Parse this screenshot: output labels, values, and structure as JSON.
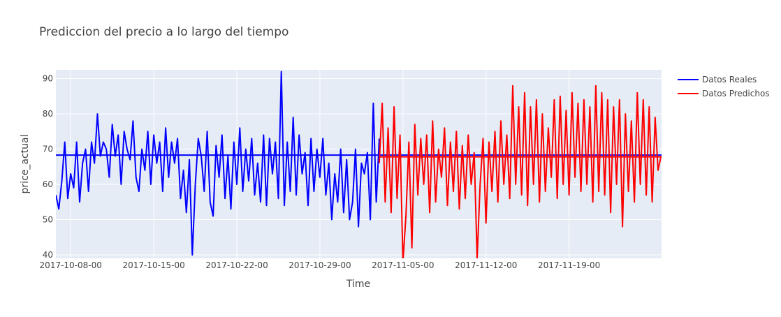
{
  "chart_data": {
    "type": "line",
    "title": "Prediccion del precio a lo largo del tiempo",
    "xlabel": "Time",
    "ylabel": "price_actual",
    "x_range": [
      "2017-10-06T18:00",
      "2017-11-26T19:00"
    ],
    "ylim": [
      39,
      92.5
    ],
    "x_ticks": [
      "2017-10-08-00",
      "2017-10-15-00",
      "2017-10-22-00",
      "2017-10-29-00",
      "2017-11-05-00",
      "2017-11-12-00",
      "2017-11-19-00"
    ],
    "x_tick_dates": [
      "2017-10-08T00:00",
      "2017-10-15T00:00",
      "2017-10-22T00:00",
      "2017-10-29T00:00",
      "2017-11-05T00:00",
      "2017-11-12T00:00",
      "2017-11-19T00:00"
    ],
    "y_ticks": [
      40,
      50,
      60,
      70,
      80,
      90
    ],
    "grid": true,
    "legend_position": "top-right",
    "colors": {
      "plot_bg": "#e5ecf6",
      "grid": "#ffffff",
      "text": "#444444"
    },
    "series": [
      {
        "name": "Datos Reales",
        "color": "#0000ff",
        "mean_line": 68.3,
        "x": [
          "2017-10-06T18:00",
          "2017-10-07T00:00",
          "2017-10-07T06:00",
          "2017-10-07T12:00",
          "2017-10-07T18:00",
          "2017-10-08T00:00",
          "2017-10-08T06:00",
          "2017-10-08T12:00",
          "2017-10-08T18:00",
          "2017-10-09T00:00",
          "2017-10-09T06:00",
          "2017-10-09T12:00",
          "2017-10-09T18:00",
          "2017-10-10T00:00",
          "2017-10-10T06:00",
          "2017-10-10T12:00",
          "2017-10-10T18:00",
          "2017-10-11T00:00",
          "2017-10-11T06:00",
          "2017-10-11T12:00",
          "2017-10-11T18:00",
          "2017-10-12T00:00",
          "2017-10-12T06:00",
          "2017-10-12T12:00",
          "2017-10-12T18:00",
          "2017-10-13T00:00",
          "2017-10-13T06:00",
          "2017-10-13T12:00",
          "2017-10-13T18:00",
          "2017-10-14T00:00",
          "2017-10-14T06:00",
          "2017-10-14T12:00",
          "2017-10-14T18:00",
          "2017-10-15T00:00",
          "2017-10-15T06:00",
          "2017-10-15T12:00",
          "2017-10-15T18:00",
          "2017-10-16T00:00",
          "2017-10-16T06:00",
          "2017-10-16T12:00",
          "2017-10-16T18:00",
          "2017-10-17T00:00",
          "2017-10-17T06:00",
          "2017-10-17T12:00",
          "2017-10-17T18:00",
          "2017-10-18T00:00",
          "2017-10-18T06:00",
          "2017-10-18T12:00",
          "2017-10-18T18:00",
          "2017-10-19T00:00",
          "2017-10-19T06:00",
          "2017-10-19T12:00",
          "2017-10-19T18:00",
          "2017-10-20T00:00",
          "2017-10-20T06:00",
          "2017-10-20T12:00",
          "2017-10-20T18:00",
          "2017-10-21T00:00",
          "2017-10-21T06:00",
          "2017-10-21T12:00",
          "2017-10-21T18:00",
          "2017-10-22T00:00",
          "2017-10-22T06:00",
          "2017-10-22T12:00",
          "2017-10-22T18:00",
          "2017-10-23T00:00",
          "2017-10-23T06:00",
          "2017-10-23T12:00",
          "2017-10-23T18:00",
          "2017-10-24T00:00",
          "2017-10-24T06:00",
          "2017-10-24T12:00",
          "2017-10-24T18:00",
          "2017-10-25T00:00",
          "2017-10-25T06:00",
          "2017-10-25T12:00",
          "2017-10-25T18:00",
          "2017-10-26T00:00",
          "2017-10-26T06:00",
          "2017-10-26T12:00",
          "2017-10-26T18:00",
          "2017-10-27T00:00",
          "2017-10-27T06:00",
          "2017-10-27T12:00",
          "2017-10-27T18:00",
          "2017-10-28T00:00",
          "2017-10-28T06:00",
          "2017-10-28T12:00",
          "2017-10-28T18:00",
          "2017-10-29T00:00",
          "2017-10-29T06:00",
          "2017-10-29T12:00",
          "2017-10-29T18:00",
          "2017-10-30T00:00",
          "2017-10-30T06:00",
          "2017-10-30T12:00",
          "2017-10-30T18:00",
          "2017-10-31T00:00",
          "2017-10-31T06:00",
          "2017-10-31T12:00",
          "2017-10-31T18:00",
          "2017-11-01T00:00",
          "2017-11-01T06:00",
          "2017-11-01T12:00",
          "2017-11-01T18:00",
          "2017-11-02T00:00",
          "2017-11-02T06:00",
          "2017-11-02T12:00",
          "2017-11-02T18:00",
          "2017-11-03T00:00"
        ],
        "y": [
          57,
          53,
          61,
          72,
          56,
          63,
          59,
          72,
          55,
          66,
          70,
          58,
          72,
          66,
          80,
          68,
          72,
          70,
          62,
          77,
          68,
          74,
          60,
          75,
          70,
          67,
          78,
          62,
          58,
          70,
          64,
          75,
          60,
          74,
          66,
          72,
          58,
          76,
          62,
          72,
          66,
          73,
          56,
          64,
          52,
          67,
          40,
          60,
          73,
          68,
          58,
          75,
          55,
          51,
          71,
          62,
          74,
          56,
          68,
          53,
          72,
          60,
          76,
          58,
          70,
          61,
          73,
          57,
          66,
          55,
          74,
          54,
          73,
          63,
          72,
          56,
          92,
          54,
          72,
          58,
          79,
          57,
          74,
          63,
          69,
          54,
          73,
          58,
          70,
          62,
          73,
          57,
          66,
          50,
          63,
          55,
          70,
          52,
          67,
          50,
          55,
          70,
          48,
          66,
          63,
          69,
          50,
          83,
          55,
          73
        ]
      },
      {
        "name": "Datos Predichos",
        "color": "#ff0000",
        "mean_line": 67.8,
        "x": [
          "2017-11-03T00:00",
          "2017-11-03T06:00",
          "2017-11-03T12:00",
          "2017-11-03T18:00",
          "2017-11-04T00:00",
          "2017-11-04T06:00",
          "2017-11-04T12:00",
          "2017-11-04T18:00",
          "2017-11-05T00:00",
          "2017-11-05T06:00",
          "2017-11-05T12:00",
          "2017-11-05T18:00",
          "2017-11-06T00:00",
          "2017-11-06T06:00",
          "2017-11-06T12:00",
          "2017-11-06T18:00",
          "2017-11-07T00:00",
          "2017-11-07T06:00",
          "2017-11-07T12:00",
          "2017-11-07T18:00",
          "2017-11-08T00:00",
          "2017-11-08T06:00",
          "2017-11-08T12:00",
          "2017-11-08T18:00",
          "2017-11-09T00:00",
          "2017-11-09T06:00",
          "2017-11-09T12:00",
          "2017-11-09T18:00",
          "2017-11-10T00:00",
          "2017-11-10T06:00",
          "2017-11-10T12:00",
          "2017-11-10T18:00",
          "2017-11-11T00:00",
          "2017-11-11T06:00",
          "2017-11-11T12:00",
          "2017-11-11T18:00",
          "2017-11-12T00:00",
          "2017-11-12T06:00",
          "2017-11-12T12:00",
          "2017-11-12T18:00",
          "2017-11-13T00:00",
          "2017-11-13T06:00",
          "2017-11-13T12:00",
          "2017-11-13T18:00",
          "2017-11-14T00:00",
          "2017-11-14T06:00",
          "2017-11-14T12:00",
          "2017-11-14T18:00",
          "2017-11-15T00:00",
          "2017-11-15T06:00",
          "2017-11-15T12:00",
          "2017-11-15T18:00",
          "2017-11-16T00:00",
          "2017-11-16T06:00",
          "2017-11-16T12:00",
          "2017-11-16T18:00",
          "2017-11-17T00:00",
          "2017-11-17T06:00",
          "2017-11-17T12:00",
          "2017-11-17T18:00",
          "2017-11-18T00:00",
          "2017-11-18T06:00",
          "2017-11-18T12:00",
          "2017-11-18T18:00",
          "2017-11-19T00:00",
          "2017-11-19T06:00",
          "2017-11-19T12:00",
          "2017-11-19T18:00",
          "2017-11-20T00:00",
          "2017-11-20T06:00",
          "2017-11-20T12:00",
          "2017-11-20T18:00",
          "2017-11-21T00:00",
          "2017-11-21T06:00",
          "2017-11-21T12:00",
          "2017-11-21T18:00",
          "2017-11-22T00:00",
          "2017-11-22T06:00",
          "2017-11-22T12:00",
          "2017-11-22T18:00",
          "2017-11-23T00:00",
          "2017-11-23T06:00",
          "2017-11-23T12:00",
          "2017-11-23T18:00",
          "2017-11-24T00:00",
          "2017-11-24T06:00",
          "2017-11-24T12:00",
          "2017-11-24T18:00",
          "2017-11-25T00:00",
          "2017-11-25T06:00",
          "2017-11-25T12:00",
          "2017-11-25T18:00",
          "2017-11-26T00:00",
          "2017-11-26T06:00",
          "2017-11-26T12:00",
          "2017-11-26T18:00"
        ],
        "y": [
          66,
          83,
          55,
          76,
          52,
          82,
          56,
          74,
          38,
          51,
          72,
          42,
          77,
          57,
          73,
          60,
          74,
          52,
          78,
          55,
          70,
          62,
          76,
          54,
          72,
          58,
          75,
          53,
          71,
          56,
          74,
          60,
          69,
          39,
          60,
          73,
          49,
          72,
          58,
          75,
          55,
          78,
          60,
          74,
          56,
          88,
          60,
          82,
          57,
          86,
          54,
          82,
          60,
          84,
          55,
          80,
          58,
          76,
          62,
          84,
          56,
          85,
          60,
          81,
          57,
          86,
          62,
          83,
          58,
          84,
          60,
          82,
          55,
          88,
          58,
          86,
          57,
          84,
          52,
          82,
          60,
          84,
          48,
          80,
          58,
          78,
          55,
          86,
          60,
          84,
          57,
          82,
          55,
          79,
          64,
          68
        ]
      }
    ]
  }
}
